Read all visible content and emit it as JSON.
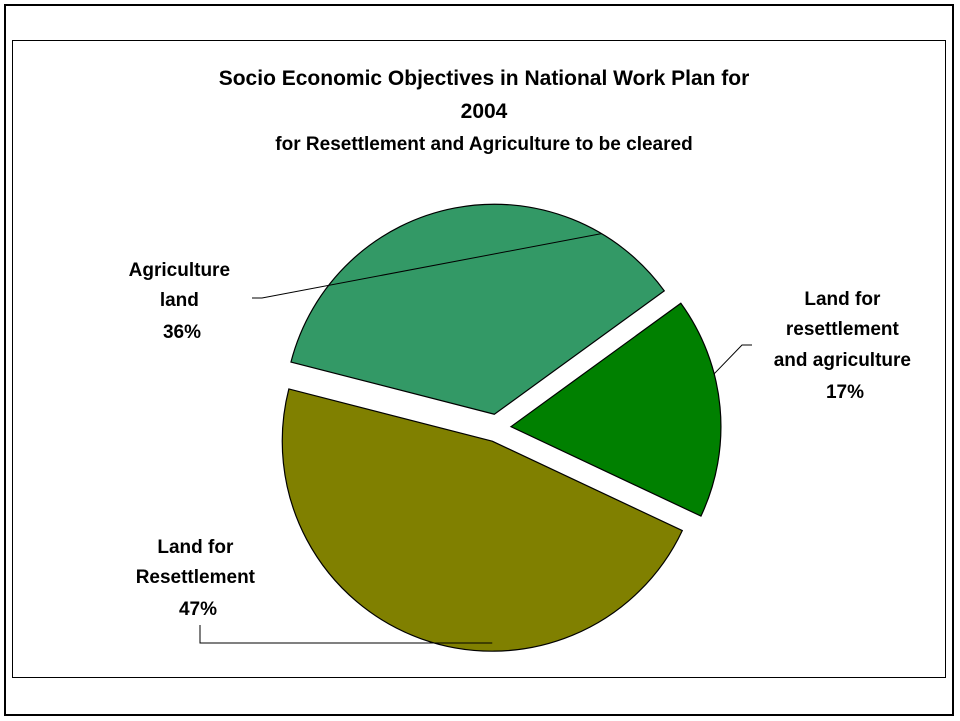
{
  "chart_data": {
    "type": "pie",
    "title_lines": [
      "Socio Economic Objectives in National Work Plan for",
      "2004"
    ],
    "subtitle": "for Resettlement and Agriculture to be cleared",
    "slices": [
      {
        "label_lines": [
          "Agriculture",
          "land"
        ],
        "percent_label": "36%",
        "value": 36,
        "color": "#339966"
      },
      {
        "label_lines": [
          "Land for",
          "resettlement",
          "and agriculture"
        ],
        "percent_label": "17%",
        "value": 17,
        "color": "#008000"
      },
      {
        "label_lines": [
          "Land for",
          "Resettlement"
        ],
        "percent_label": "47%",
        "value": 47,
        "color": "#808000"
      }
    ],
    "exploded": true,
    "legend": "none"
  }
}
